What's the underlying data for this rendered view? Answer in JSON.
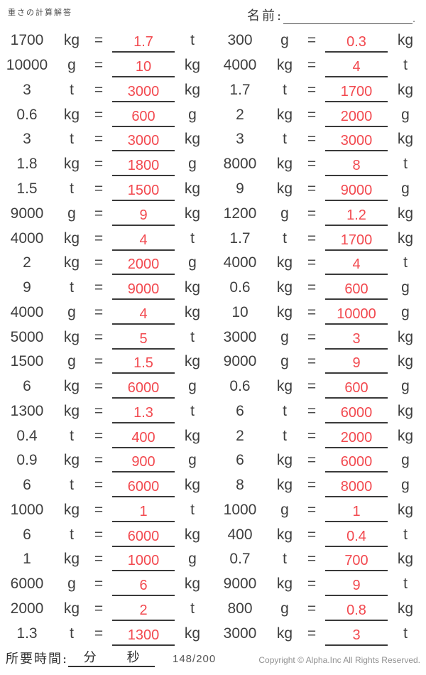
{
  "header": {
    "title": "重さの計算解答",
    "name_label": "名前:",
    "name_line_period": "."
  },
  "labels": {
    "equals": "="
  },
  "problems": {
    "left": [
      {
        "value": "1700",
        "from": "kg",
        "answer": "1.7",
        "to": "t"
      },
      {
        "value": "10000",
        "from": "g",
        "answer": "10",
        "to": "kg"
      },
      {
        "value": "3",
        "from": "t",
        "answer": "3000",
        "to": "kg"
      },
      {
        "value": "0.6",
        "from": "kg",
        "answer": "600",
        "to": "g"
      },
      {
        "value": "3",
        "from": "t",
        "answer": "3000",
        "to": "kg"
      },
      {
        "value": "1.8",
        "from": "kg",
        "answer": "1800",
        "to": "g"
      },
      {
        "value": "1.5",
        "from": "t",
        "answer": "1500",
        "to": "kg"
      },
      {
        "value": "9000",
        "from": "g",
        "answer": "9",
        "to": "kg"
      },
      {
        "value": "4000",
        "from": "kg",
        "answer": "4",
        "to": "t"
      },
      {
        "value": "2",
        "from": "kg",
        "answer": "2000",
        "to": "g"
      },
      {
        "value": "9",
        "from": "t",
        "answer": "9000",
        "to": "kg"
      },
      {
        "value": "4000",
        "from": "g",
        "answer": "4",
        "to": "kg"
      },
      {
        "value": "5000",
        "from": "kg",
        "answer": "5",
        "to": "t"
      },
      {
        "value": "1500",
        "from": "g",
        "answer": "1.5",
        "to": "kg"
      },
      {
        "value": "6",
        "from": "kg",
        "answer": "6000",
        "to": "g"
      },
      {
        "value": "1300",
        "from": "kg",
        "answer": "1.3",
        "to": "t"
      },
      {
        "value": "0.4",
        "from": "t",
        "answer": "400",
        "to": "kg"
      },
      {
        "value": "0.9",
        "from": "kg",
        "answer": "900",
        "to": "g"
      },
      {
        "value": "6",
        "from": "t",
        "answer": "6000",
        "to": "kg"
      },
      {
        "value": "1000",
        "from": "kg",
        "answer": "1",
        "to": "t"
      },
      {
        "value": "6",
        "from": "t",
        "answer": "6000",
        "to": "kg"
      },
      {
        "value": "1",
        "from": "kg",
        "answer": "1000",
        "to": "g"
      },
      {
        "value": "6000",
        "from": "g",
        "answer": "6",
        "to": "kg"
      },
      {
        "value": "2000",
        "from": "kg",
        "answer": "2",
        "to": "t"
      },
      {
        "value": "1.3",
        "from": "t",
        "answer": "1300",
        "to": "kg"
      }
    ],
    "right": [
      {
        "value": "300",
        "from": "g",
        "answer": "0.3",
        "to": "kg"
      },
      {
        "value": "4000",
        "from": "kg",
        "answer": "4",
        "to": "t"
      },
      {
        "value": "1.7",
        "from": "t",
        "answer": "1700",
        "to": "kg"
      },
      {
        "value": "2",
        "from": "kg",
        "answer": "2000",
        "to": "g"
      },
      {
        "value": "3",
        "from": "t",
        "answer": "3000",
        "to": "kg"
      },
      {
        "value": "8000",
        "from": "kg",
        "answer": "8",
        "to": "t"
      },
      {
        "value": "9",
        "from": "kg",
        "answer": "9000",
        "to": "g"
      },
      {
        "value": "1200",
        "from": "g",
        "answer": "1.2",
        "to": "kg"
      },
      {
        "value": "1.7",
        "from": "t",
        "answer": "1700",
        "to": "kg"
      },
      {
        "value": "4000",
        "from": "kg",
        "answer": "4",
        "to": "t"
      },
      {
        "value": "0.6",
        "from": "kg",
        "answer": "600",
        "to": "g"
      },
      {
        "value": "10",
        "from": "kg",
        "answer": "10000",
        "to": "g"
      },
      {
        "value": "3000",
        "from": "g",
        "answer": "3",
        "to": "kg"
      },
      {
        "value": "9000",
        "from": "g",
        "answer": "9",
        "to": "kg"
      },
      {
        "value": "0.6",
        "from": "kg",
        "answer": "600",
        "to": "g"
      },
      {
        "value": "6",
        "from": "t",
        "answer": "6000",
        "to": "kg"
      },
      {
        "value": "2",
        "from": "t",
        "answer": "2000",
        "to": "kg"
      },
      {
        "value": "6",
        "from": "kg",
        "answer": "6000",
        "to": "g"
      },
      {
        "value": "8",
        "from": "kg",
        "answer": "8000",
        "to": "g"
      },
      {
        "value": "1000",
        "from": "g",
        "answer": "1",
        "to": "kg"
      },
      {
        "value": "400",
        "from": "kg",
        "answer": "0.4",
        "to": "t"
      },
      {
        "value": "0.7",
        "from": "t",
        "answer": "700",
        "to": "kg"
      },
      {
        "value": "9000",
        "from": "kg",
        "answer": "9",
        "to": "t"
      },
      {
        "value": "800",
        "from": "g",
        "answer": "0.8",
        "to": "kg"
      },
      {
        "value": "3000",
        "from": "kg",
        "answer": "3",
        "to": "t"
      }
    ]
  },
  "footer": {
    "time_label": "所要時間:",
    "minutes_label": "分",
    "seconds_label": "秒",
    "page_number": "148/200",
    "copyright": "Copyright © Alpha.Inc All Rights Reserved."
  },
  "colors": {
    "answer_red": "#f2494f",
    "problem_text": "#3f3f3f",
    "underline": "#3a3a3a",
    "muted_gray": "#919191"
  }
}
